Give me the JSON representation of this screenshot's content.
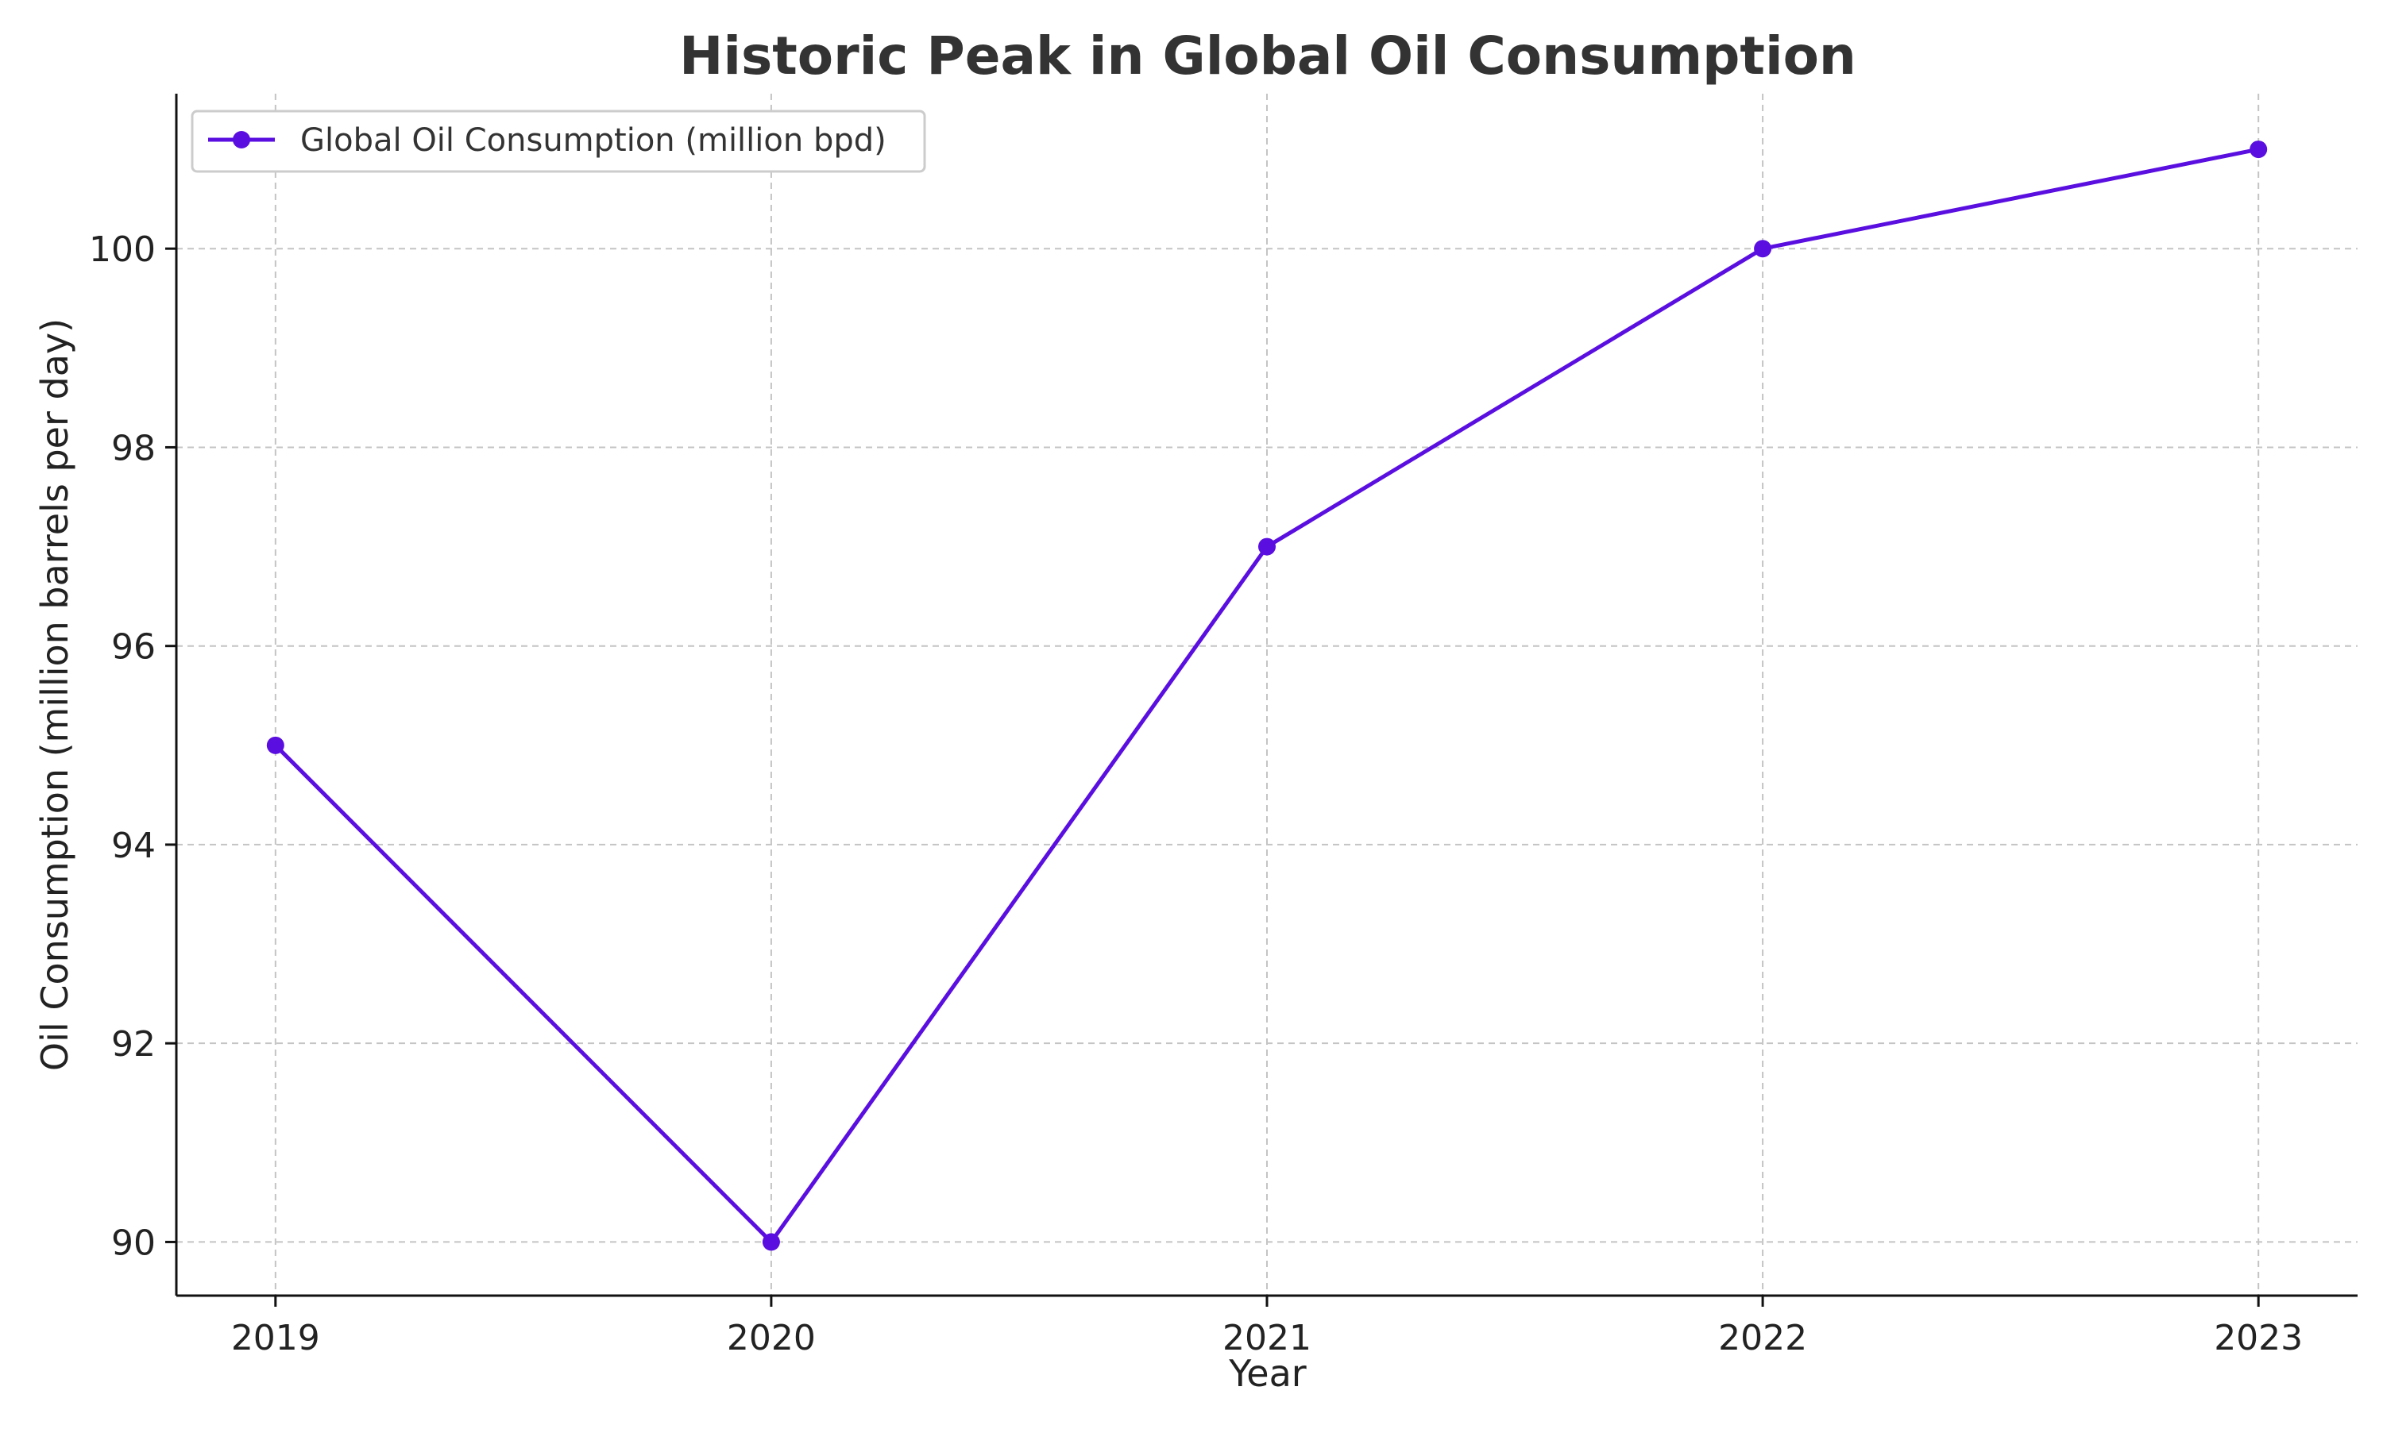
{
  "chart_data": {
    "type": "line",
    "title": "Historic Peak in Global Oil Consumption",
    "xlabel": "Year",
    "ylabel": "Oil Consumption (million barrels per day)",
    "categories": [
      "2019",
      "2020",
      "2021",
      "2022",
      "2023"
    ],
    "xlim": [
      2018.8,
      2023.2
    ],
    "ylim": [
      89.46,
      101.56
    ],
    "yticks": [
      90,
      92,
      94,
      96,
      98,
      100
    ],
    "grid": true,
    "legend_position": "top-left",
    "series": [
      {
        "name": "Global Oil Consumption (million bpd)",
        "x": [
          2019,
          2020,
          2021,
          2022,
          2023
        ],
        "values": [
          95,
          90,
          97,
          100,
          101
        ],
        "color": "#5a0fe0",
        "marker": "circle"
      }
    ]
  }
}
